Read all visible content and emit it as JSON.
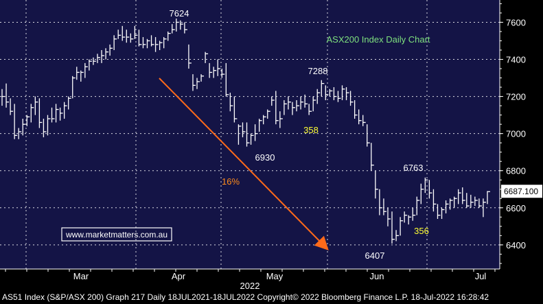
{
  "chart_data": {
    "type": "ohlc",
    "title": "ASX200 Index Daily Chart",
    "x_axis": {
      "month_labels": [
        "Mar",
        "Apr",
        "May",
        "Jun",
        "Jul"
      ],
      "year_label": "2022"
    },
    "y_axis": {
      "ticks": [
        6400,
        6600,
        6800,
        7000,
        7200,
        7400,
        7600
      ],
      "range": [
        6270,
        7720
      ],
      "side": "right"
    },
    "last_price_label": "6687.100",
    "grid": true,
    "series": [
      {
        "values": [
          [
            7240,
            7150,
            7200
          ],
          [
            7270,
            7140,
            7170
          ],
          [
            7190,
            7100,
            7120
          ],
          [
            7160,
            6970,
            6990
          ],
          [
            7030,
            6970,
            7010
          ],
          [
            7080,
            6990,
            7050
          ],
          [
            7100,
            7040,
            7090
          ],
          [
            7160,
            7060,
            7140
          ],
          [
            7200,
            7100,
            7170
          ],
          [
            7190,
            7030,
            7060
          ],
          [
            7080,
            6980,
            7010
          ],
          [
            7100,
            6990,
            7080
          ],
          [
            7140,
            7060,
            7080
          ],
          [
            7160,
            7060,
            7130
          ],
          [
            7140,
            7070,
            7110
          ],
          [
            7170,
            7080,
            7150
          ],
          [
            7200,
            7130,
            7190
          ],
          [
            7310,
            7190,
            7300
          ],
          [
            7360,
            7290,
            7330
          ],
          [
            7340,
            7280,
            7330
          ],
          [
            7380,
            7300,
            7360
          ],
          [
            7400,
            7340,
            7390
          ],
          [
            7410,
            7370,
            7390
          ],
          [
            7430,
            7380,
            7410
          ],
          [
            7450,
            7380,
            7420
          ],
          [
            7460,
            7400,
            7440
          ],
          [
            7480,
            7420,
            7460
          ],
          [
            7530,
            7450,
            7510
          ],
          [
            7560,
            7510,
            7530
          ],
          [
            7580,
            7500,
            7520
          ],
          [
            7560,
            7490,
            7520
          ],
          [
            7540,
            7490,
            7510
          ],
          [
            7580,
            7510,
            7530
          ],
          [
            7560,
            7470,
            7480
          ],
          [
            7520,
            7460,
            7480
          ],
          [
            7510,
            7460,
            7500
          ],
          [
            7530,
            7470,
            7480
          ],
          [
            7520,
            7440,
            7480
          ],
          [
            7500,
            7450,
            7490
          ],
          [
            7520,
            7460,
            7510
          ],
          [
            7550,
            7500,
            7540
          ],
          [
            7590,
            7540,
            7560
          ],
          [
            7620,
            7550,
            7600
          ],
          [
            7610,
            7560,
            7590
          ],
          [
            7600,
            7540,
            7560
          ],
          [
            7480,
            7350,
            7380
          ],
          [
            7320,
            7230,
            7260
          ],
          [
            7300,
            7240,
            7280
          ],
          [
            7320,
            7280,
            7310
          ],
          [
            7440,
            7380,
            7430
          ],
          [
            7380,
            7300,
            7330
          ],
          [
            7360,
            7300,
            7340
          ],
          [
            7400,
            7310,
            7350
          ],
          [
            7350,
            7300,
            7320
          ],
          [
            7380,
            7200,
            7210
          ],
          [
            7220,
            7120,
            7150
          ],
          [
            7200,
            7060,
            7080
          ],
          [
            7050,
            6940,
            7040
          ],
          [
            7060,
            6980,
            7010
          ],
          [
            7060,
            6930,
            6950
          ],
          [
            7000,
            6940,
            6990
          ],
          [
            7050,
            6960,
            7000
          ],
          [
            7080,
            7010,
            7070
          ],
          [
            7100,
            7050,
            7090
          ],
          [
            7130,
            7080,
            7120
          ],
          [
            7200,
            7150,
            7180
          ],
          [
            7230,
            7050,
            7070
          ],
          [
            7120,
            7030,
            7080
          ],
          [
            7180,
            7100,
            7160
          ],
          [
            7200,
            7130,
            7170
          ],
          [
            7170,
            7100,
            7140
          ],
          [
            7180,
            7120,
            7150
          ],
          [
            7200,
            7130,
            7170
          ],
          [
            7210,
            7140,
            7160
          ],
          [
            7160,
            7100,
            7120
          ],
          [
            7200,
            7120,
            7180
          ],
          [
            7240,
            7160,
            7220
          ],
          [
            7288,
            7200,
            7270
          ],
          [
            7260,
            7180,
            7210
          ],
          [
            7240,
            7200,
            7230
          ],
          [
            7250,
            7180,
            7200
          ],
          [
            7230,
            7170,
            7190
          ],
          [
            7260,
            7180,
            7240
          ],
          [
            7250,
            7180,
            7220
          ],
          [
            7230,
            7150,
            7170
          ],
          [
            7180,
            7080,
            7100
          ],
          [
            7130,
            7050,
            7070
          ],
          [
            7100,
            7040,
            7060
          ],
          [
            7050,
            6930,
            6950
          ],
          [
            6950,
            6800,
            6830
          ],
          [
            6800,
            6650,
            6700
          ],
          [
            6700,
            6560,
            6600
          ],
          [
            6650,
            6560,
            6580
          ],
          [
            6600,
            6500,
            6540
          ],
          [
            6580,
            6407,
            6430
          ],
          [
            6480,
            6420,
            6450
          ],
          [
            6550,
            6450,
            6530
          ],
          [
            6580,
            6520,
            6560
          ],
          [
            6560,
            6510,
            6550
          ],
          [
            6600,
            6530,
            6560
          ],
          [
            6660,
            6560,
            6640
          ],
          [
            6730,
            6620,
            6700
          ],
          [
            6763,
            6680,
            6750
          ],
          [
            6750,
            6650,
            6680
          ],
          [
            6700,
            6580,
            6620
          ],
          [
            6620,
            6540,
            6560
          ],
          [
            6600,
            6540,
            6590
          ],
          [
            6640,
            6570,
            6620
          ],
          [
            6650,
            6590,
            6640
          ],
          [
            6660,
            6600,
            6650
          ],
          [
            6700,
            6620,
            6680
          ],
          [
            6710,
            6620,
            6640
          ],
          [
            6680,
            6600,
            6610
          ],
          [
            6670,
            6600,
            6630
          ],
          [
            6660,
            6610,
            6640
          ],
          [
            6650,
            6600,
            6610
          ],
          [
            6650,
            6550,
            6630
          ],
          [
            6690,
            6620,
            6687.1
          ]
        ]
      }
    ],
    "annotations": [
      {
        "text": "7624",
        "color": "#ffffff"
      },
      {
        "text": "7288",
        "color": "#ffffff"
      },
      {
        "text": "6930",
        "color": "#ffffff"
      },
      {
        "text": "358",
        "color": "#ffff33"
      },
      {
        "text": "16%",
        "color": "#ff8c1a"
      },
      {
        "text": "6763",
        "color": "#ffffff"
      },
      {
        "text": "356",
        "color": "#ffff33"
      },
      {
        "text": "6407",
        "color": "#ffffff"
      }
    ],
    "website_label": "www.marketmatters.com.au"
  },
  "footer_text": "AS51 Index (S&P/ASX 200) Graph 217  Daily 18JUL2021-18JUL2022  Copyright© 2022 Bloomberg Finance L.P.  18-Jul-2022 16:28:42",
  "colors": {
    "background": "#141446",
    "grid": "#ffffff",
    "bars": "#ffffff",
    "title": "#7ee07e",
    "arrow": "#ff6a1a",
    "website_box": "#ffffff",
    "website_text": "#ffffff"
  }
}
